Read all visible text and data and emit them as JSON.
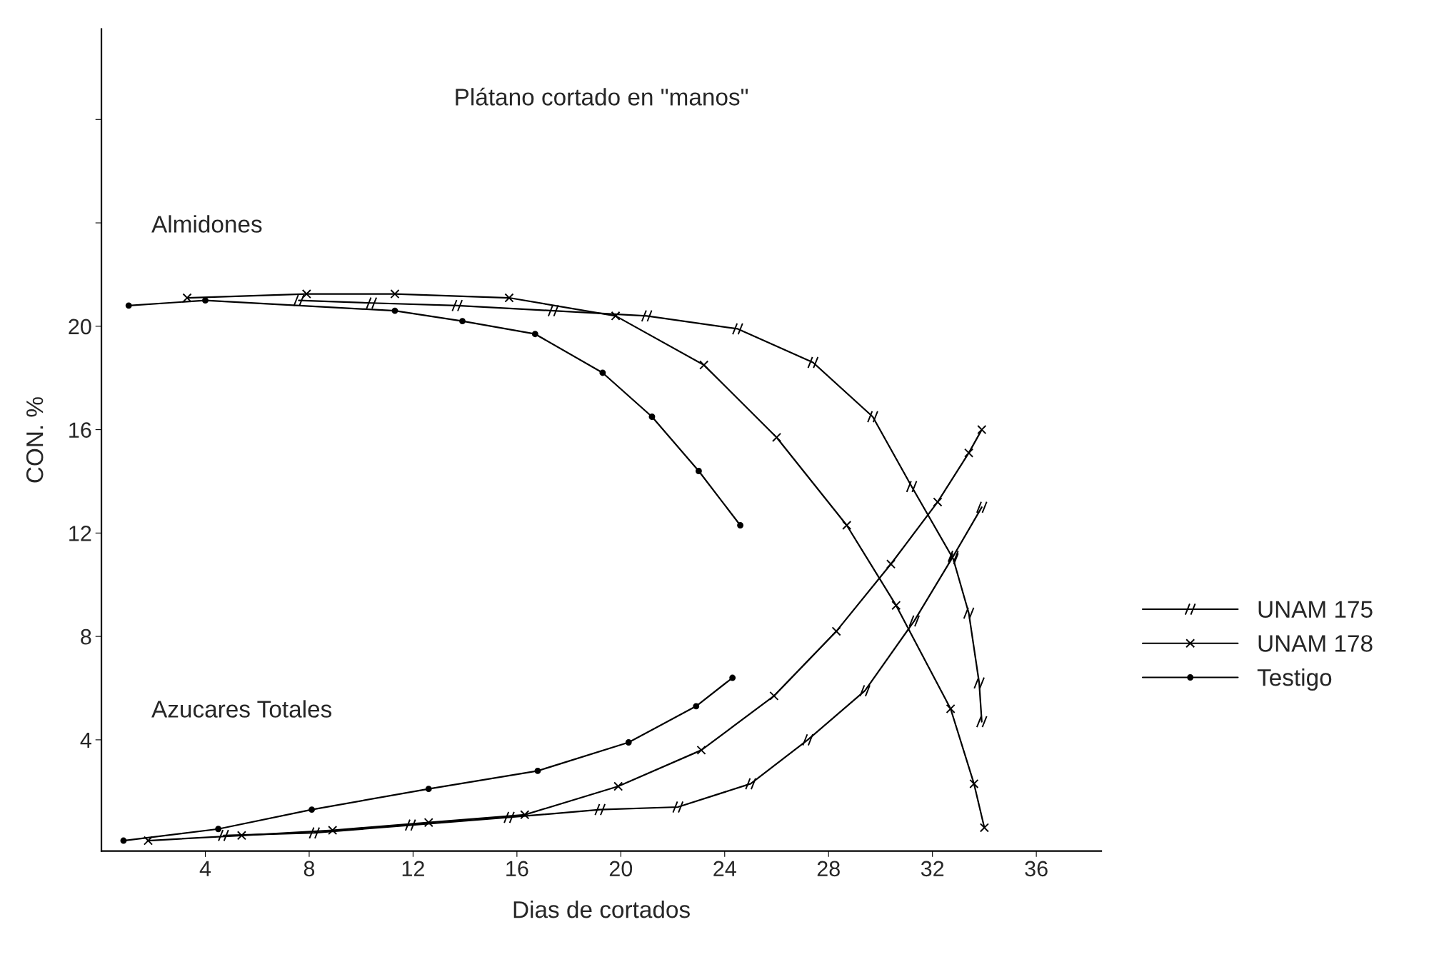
{
  "chart_data": {
    "type": "line",
    "title": "Plátano cortado en \"manos\"",
    "xlabel": "Dias de cortados",
    "ylabel": "CON. %",
    "xlim": [
      0,
      38.5
    ],
    "xticks": [
      4,
      8,
      12,
      16,
      20,
      24,
      28,
      32,
      36
    ],
    "ylim": [
      -0.3,
      31.5
    ],
    "yticks": [
      4,
      8,
      12,
      16,
      20,
      {
        "value": 24,
        "label": null
      },
      {
        "value": 28,
        "label": null
      }
    ],
    "grid": false,
    "legend": "right",
    "line_style": "solid",
    "annotations": [
      "Almidones",
      "Azucares Totales"
    ],
    "series": [
      {
        "name": "UNAM 175",
        "color": "#000000",
        "marker": "cross",
        "x": [
          7.6,
          10.4,
          13.7,
          17.4,
          21.0,
          24.5,
          27.4,
          29.7,
          31.2,
          32.8,
          33.4,
          33.8,
          33.9
        ],
        "values": [
          21.0,
          20.9,
          20.8,
          20.6,
          20.4,
          19.9,
          18.6,
          16.5,
          13.8,
          11.0,
          8.9,
          6.2,
          4.7
        ]
      },
      {
        "name": "UNAM 178",
        "color": "#000000",
        "marker": "cross",
        "x": [
          3.3,
          7.9,
          11.3,
          15.7,
          19.8,
          23.2,
          26.0,
          28.7,
          30.6,
          32.7,
          33.6,
          34.0
        ],
        "values": [
          21.1,
          21.25,
          21.25,
          21.1,
          20.4,
          18.5,
          15.7,
          12.3,
          9.2,
          5.2,
          2.3,
          0.6
        ]
      },
      {
        "name": "Testigo",
        "color": "#000000",
        "marker": "circle",
        "x": [
          1.05,
          4.0,
          11.3,
          13.9,
          16.7,
          19.3,
          21.2,
          23.0,
          24.6
        ],
        "values": [
          20.8,
          21.0,
          20.6,
          20.2,
          19.7,
          18.2,
          16.5,
          14.4,
          12.3
        ]
      },
      {
        "color": "#000000",
        "marker": "cross",
        "x": [
          4.7,
          8.2,
          11.9,
          15.7,
          19.2,
          22.2,
          25.0,
          27.2,
          29.4,
          31.3,
          32.8,
          33.9
        ],
        "values": [
          0.3,
          0.4,
          0.7,
          1.0,
          1.3,
          1.4,
          2.3,
          4.0,
          5.9,
          8.6,
          11.1,
          13.0
        ]
      },
      {
        "color": "#000000",
        "marker": "cross",
        "x": [
          1.8,
          5.4,
          8.9,
          12.6,
          16.3,
          19.9,
          23.1,
          25.9,
          28.3,
          30.4,
          32.2,
          33.4,
          33.9
        ],
        "values": [
          0.1,
          0.3,
          0.5,
          0.8,
          1.1,
          2.2,
          3.6,
          5.7,
          8.2,
          10.8,
          13.2,
          15.1,
          16.0
        ]
      },
      {
        "color": "#000000",
        "marker": "circle",
        "x": [
          0.85,
          4.5,
          8.1,
          12.6,
          16.8,
          20.3,
          22.9,
          24.3
        ],
        "values": [
          0.1,
          0.55,
          1.3,
          2.1,
          2.8,
          3.9,
          5.3,
          6.4
        ]
      }
    ]
  }
}
